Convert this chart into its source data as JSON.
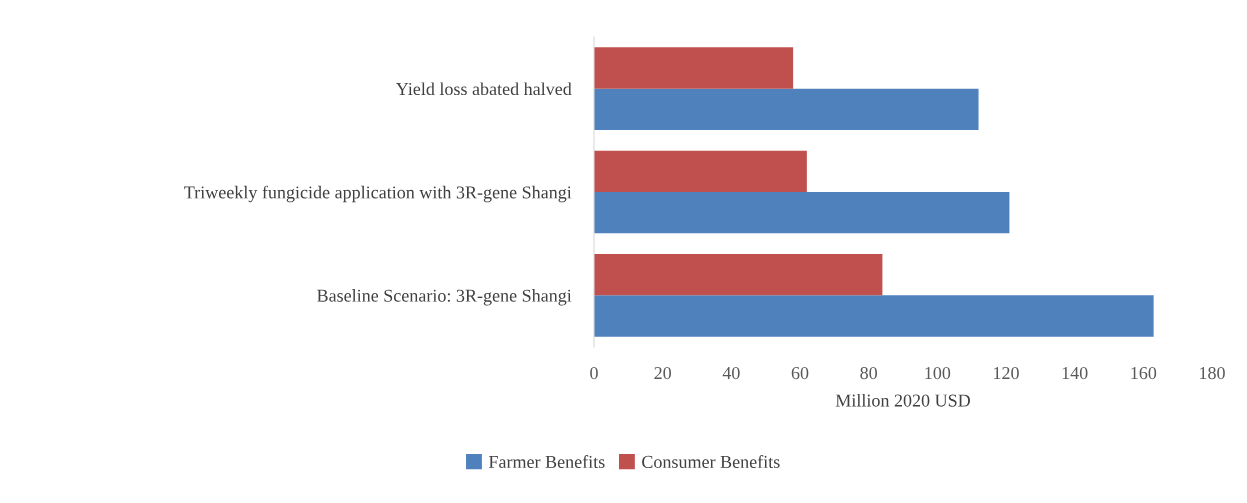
{
  "chart_data": {
    "type": "bar",
    "orientation": "horizontal",
    "categories": [
      "Yield loss abated halved",
      "Triweekly fungicide application with 3R-gene Shangi",
      "Baseline Scenario: 3R-gene Shangi"
    ],
    "series": [
      {
        "name": "Farmer Benefits",
        "color": "#4f81bd",
        "values": [
          112,
          121,
          163
        ]
      },
      {
        "name": "Consumer Benefits",
        "color": "#c0504d",
        "values": [
          58,
          62,
          84
        ]
      }
    ],
    "xlabel": "Million 2020 USD",
    "xlim": [
      0,
      180
    ],
    "xticks": [
      0,
      20,
      40,
      60,
      80,
      100,
      120,
      140,
      160,
      180
    ],
    "grid": false,
    "legend": "bottom"
  }
}
